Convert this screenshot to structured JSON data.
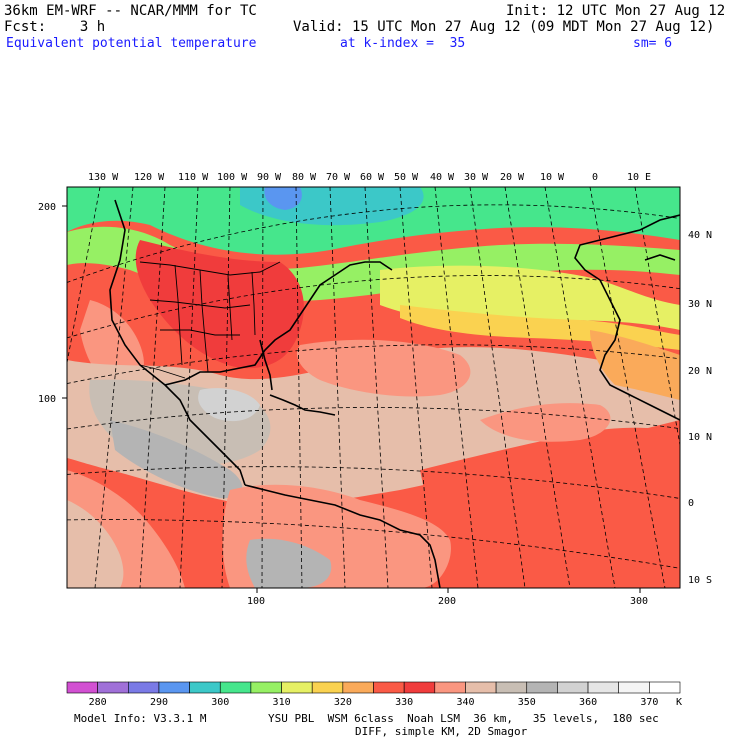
{
  "header": {
    "title_left": "36km EM-WRF -- NCAR/MMM for TC",
    "init": "Init: 12 UTC Mon 27 Aug 12",
    "fcst": "Fcst:    3 h",
    "valid": "Valid: 15 UTC Mon 27 Aug 12 (09 MDT Mon 27 Aug 12)",
    "field": "Equivalent potential temperature",
    "level": "at k-index =  35",
    "smooth": "sm= 6"
  },
  "map": {
    "top_lon_labels": [
      "130 W",
      "120 W",
      "110 W",
      "100 W",
      "90 W",
      "80 W",
      "70 W",
      "60 W",
      "50 W",
      "40 W",
      "30 W",
      "20 W",
      "10 W",
      "0",
      "10 E"
    ],
    "right_lat_labels": [
      "40 N",
      "30 N",
      "20 N",
      "10 N",
      "0",
      "10 S"
    ],
    "left_grid_labels": [
      "200",
      "100"
    ],
    "bottom_grid_labels": [
      "100",
      "200",
      "300"
    ]
  },
  "colorbar": {
    "labels": [
      "280",
      "290",
      "300",
      "310",
      "320",
      "330",
      "340",
      "350",
      "360",
      "370"
    ],
    "unit": "K",
    "colors": [
      "#d250d2",
      "#a070d8",
      "#7a7ae6",
      "#5a96f0",
      "#3cc8c8",
      "#46e68c",
      "#96f064",
      "#e6f064",
      "#fad250",
      "#faaa5a",
      "#fa5a46",
      "#f03c3c",
      "#fa9680",
      "#e6beaa",
      "#c8beb4",
      "#b4b4b4",
      "#d2d2d2",
      "#e6e6e6",
      "#f5f5f5",
      "#ffffff"
    ]
  },
  "footer": {
    "model_info": "Model Info: V3.3.1 M",
    "physics": "YSU PBL  WSM 6class  Noah LSM  36 km,   35 levels,  180 sec",
    "diff": "DIFF, simple KM, 2D Smagor"
  }
}
